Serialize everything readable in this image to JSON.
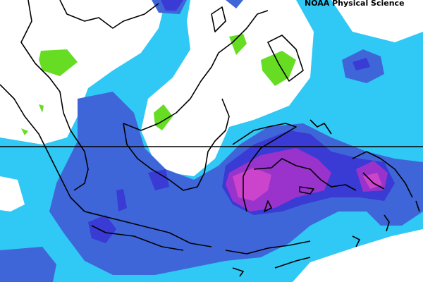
{
  "header": {
    "credit": "NOAA Physical Science"
  }
}
